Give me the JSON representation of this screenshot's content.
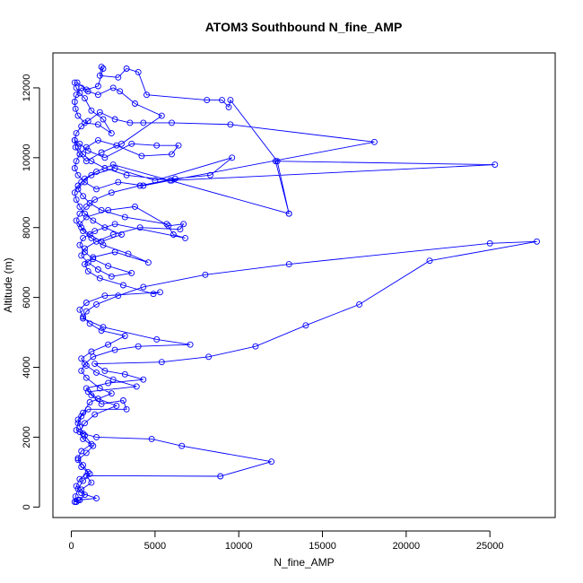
{
  "chart_data": {
    "type": "line",
    "title": "ATOM3 Southbound N_fine_AMP",
    "xlabel": "N_fine_AMP",
    "ylabel": "Altitude (m)",
    "xlim": [
      -1100,
      28900
    ],
    "ylim": [
      -300,
      13000
    ],
    "xticks": [
      0,
      5000,
      10000,
      15000,
      20000,
      25000
    ],
    "yticks": [
      0,
      2000,
      4000,
      6000,
      8000,
      10000,
      12000
    ],
    "grid": false,
    "series_color": "#0000ff",
    "series": [
      {
        "markers": "open-circle",
        "points": [
          [
            300,
            150
          ],
          [
            500,
            200
          ],
          [
            800,
            350
          ],
          [
            600,
            500
          ],
          [
            1200,
            700
          ],
          [
            900,
            900
          ],
          [
            8900,
            880
          ],
          [
            11950,
            1300
          ],
          [
            6600,
            1750
          ],
          [
            4800,
            1950
          ],
          [
            1500,
            2000
          ],
          [
            700,
            2100
          ],
          [
            300,
            2200
          ],
          [
            400,
            2400
          ],
          [
            600,
            2600
          ],
          [
            1000,
            2800
          ],
          [
            3300,
            2800
          ],
          [
            3100,
            3050
          ],
          [
            1800,
            2950
          ],
          [
            1200,
            3200
          ],
          [
            900,
            3400
          ],
          [
            2200,
            3550
          ],
          [
            4300,
            3650
          ],
          [
            3200,
            3800
          ],
          [
            2000,
            3900
          ],
          [
            1400,
            4100
          ],
          [
            5400,
            4150
          ],
          [
            8200,
            4300
          ],
          [
            11000,
            4600
          ],
          [
            14000,
            5200
          ],
          [
            17200,
            5800
          ],
          [
            21400,
            7050
          ],
          [
            27800,
            7600
          ],
          [
            25000,
            7550
          ],
          [
            13000,
            6950
          ],
          [
            8000,
            6650
          ],
          [
            4300,
            6300
          ],
          [
            2800,
            6050
          ],
          [
            1500,
            5800
          ],
          [
            900,
            5600
          ],
          [
            700,
            5400
          ],
          [
            1900,
            5150
          ],
          [
            5100,
            4800
          ],
          [
            7100,
            4650
          ],
          [
            4000,
            4600
          ],
          [
            2600,
            4500
          ],
          [
            1300,
            4300
          ],
          [
            800,
            4100
          ],
          [
            600,
            3900
          ],
          [
            900,
            3700
          ],
          [
            1700,
            3400
          ],
          [
            2400,
            3250
          ],
          [
            1100,
            3000
          ],
          [
            700,
            2700
          ],
          [
            400,
            2500
          ],
          [
            500,
            2300
          ],
          [
            800,
            2050
          ],
          [
            1200,
            1800
          ],
          [
            600,
            1600
          ],
          [
            400,
            1400
          ],
          [
            700,
            1200
          ],
          [
            1000,
            1000
          ],
          [
            500,
            800
          ],
          [
            300,
            600
          ],
          [
            600,
            400
          ],
          [
            1500,
            250
          ],
          [
            400,
            200
          ],
          [
            200,
            150
          ],
          [
            250,
            300
          ],
          [
            400,
            520
          ],
          [
            700,
            750
          ],
          [
            1100,
            950
          ],
          [
            600,
            1150
          ],
          [
            400,
            1350
          ],
          [
            900,
            1550
          ],
          [
            1300,
            1750
          ],
          [
            700,
            1950
          ],
          [
            500,
            2150
          ],
          [
            800,
            2400
          ],
          [
            1400,
            2650
          ],
          [
            2700,
            2900
          ],
          [
            1600,
            3100
          ],
          [
            1000,
            3300
          ],
          [
            3900,
            3450
          ],
          [
            2500,
            3650
          ],
          [
            1500,
            3850
          ],
          [
            900,
            4050
          ],
          [
            600,
            4250
          ],
          [
            1200,
            4450
          ],
          [
            2200,
            4650
          ],
          [
            3200,
            4900
          ],
          [
            1800,
            5050
          ],
          [
            1100,
            5250
          ],
          [
            700,
            5450
          ],
          [
            500,
            5650
          ],
          [
            900,
            5850
          ],
          [
            2000,
            6050
          ],
          [
            5300,
            6150
          ],
          [
            4900,
            6100
          ],
          [
            3100,
            6350
          ],
          [
            1700,
            6550
          ],
          [
            1000,
            6750
          ],
          [
            800,
            6950
          ],
          [
            1300,
            7150
          ],
          [
            2600,
            7300
          ],
          [
            4600,
            7000
          ],
          [
            3400,
            7250
          ],
          [
            1900,
            7500
          ],
          [
            1200,
            7700
          ],
          [
            700,
            7900
          ],
          [
            500,
            8100
          ],
          [
            900,
            8300
          ],
          [
            2200,
            8500
          ],
          [
            3800,
            8600
          ],
          [
            5800,
            8050
          ],
          [
            6700,
            8100
          ],
          [
            6500,
            7950
          ],
          [
            4100,
            8000
          ],
          [
            2500,
            7800
          ],
          [
            1500,
            7600
          ],
          [
            800,
            7400
          ],
          [
            600,
            7200
          ],
          [
            1000,
            7000
          ],
          [
            1600,
            6800
          ],
          [
            2400,
            6600
          ],
          [
            3600,
            6700
          ],
          [
            2200,
            6900
          ],
          [
            1300,
            7100
          ],
          [
            800,
            7300
          ],
          [
            500,
            7500
          ],
          [
            700,
            7700
          ],
          [
            1400,
            7900
          ],
          [
            2600,
            8100
          ],
          [
            6800,
            7700
          ],
          [
            6100,
            7800
          ],
          [
            5700,
            8100
          ],
          [
            3200,
            8300
          ],
          [
            1800,
            8500
          ],
          [
            1100,
            8700
          ],
          [
            700,
            8900
          ],
          [
            400,
            9100
          ],
          [
            600,
            9300
          ],
          [
            1200,
            9500
          ],
          [
            2600,
            9700
          ],
          [
            5000,
            9350
          ],
          [
            9600,
            10000
          ],
          [
            8300,
            9500
          ],
          [
            6200,
            9400
          ],
          [
            4100,
            9200
          ],
          [
            2400,
            9000
          ],
          [
            1400,
            8800
          ],
          [
            900,
            8600
          ],
          [
            500,
            8400
          ],
          [
            300,
            8200
          ],
          [
            600,
            8000
          ],
          [
            1100,
            7800
          ],
          [
            1800,
            7600
          ],
          [
            3000,
            7800
          ],
          [
            2000,
            8000
          ],
          [
            1300,
            8200
          ],
          [
            800,
            8400
          ],
          [
            500,
            8600
          ],
          [
            300,
            8800
          ],
          [
            200,
            9000
          ],
          [
            400,
            9200
          ],
          [
            800,
            9400
          ],
          [
            1500,
            9600
          ],
          [
            2500,
            9800
          ],
          [
            13000,
            8400
          ],
          [
            12200,
            9900
          ],
          [
            25300,
            9800
          ],
          [
            6000,
            9350
          ],
          [
            3300,
            9500
          ],
          [
            2000,
            9700
          ],
          [
            1200,
            9900
          ],
          [
            700,
            10100
          ],
          [
            400,
            10300
          ],
          [
            200,
            10500
          ],
          [
            500,
            10400
          ],
          [
            1000,
            10200
          ],
          [
            2000,
            10000
          ],
          [
            3600,
            10400
          ],
          [
            5100,
            10350
          ],
          [
            6400,
            10350
          ],
          [
            6000,
            10100
          ],
          [
            4200,
            10050
          ],
          [
            2700,
            10350
          ],
          [
            1600,
            10500
          ],
          [
            900,
            10300
          ],
          [
            500,
            10100
          ],
          [
            300,
            9900
          ],
          [
            200,
            9700
          ],
          [
            400,
            9500
          ],
          [
            800,
            9300
          ],
          [
            1500,
            9100
          ],
          [
            2800,
            9300
          ],
          [
            4300,
            9200
          ],
          [
            5900,
            9350
          ],
          [
            18100,
            10450
          ],
          [
            9500,
            10950
          ],
          [
            6000,
            11000
          ],
          [
            4300,
            11000
          ],
          [
            3500,
            11000
          ],
          [
            2600,
            11100
          ],
          [
            1700,
            11300
          ],
          [
            1000,
            11050
          ],
          [
            600,
            10900
          ],
          [
            300,
            10700
          ],
          [
            200,
            10500
          ],
          [
            250,
            10300
          ],
          [
            500,
            10100
          ],
          [
            900,
            9900
          ],
          [
            1800,
            10150
          ],
          [
            3000,
            10400
          ],
          [
            5400,
            11200
          ],
          [
            3800,
            11550
          ],
          [
            2900,
            11900
          ],
          [
            2500,
            12000
          ],
          [
            1600,
            11800
          ],
          [
            1000,
            11900
          ],
          [
            600,
            12000
          ],
          [
            300,
            11800
          ],
          [
            200,
            11600
          ],
          [
            250,
            11400
          ],
          [
            400,
            11200
          ],
          [
            800,
            11000
          ],
          [
            1600,
            10950
          ],
          [
            2400,
            10700
          ],
          [
            1900,
            11100
          ],
          [
            1200,
            11350
          ],
          [
            800,
            11700
          ],
          [
            500,
            11850
          ],
          [
            300,
            12000
          ],
          [
            200,
            12150
          ],
          [
            350,
            12150
          ],
          [
            900,
            11950
          ],
          [
            1600,
            12050
          ],
          [
            1900,
            12550
          ],
          [
            1800,
            12600
          ],
          [
            1700,
            12350
          ],
          [
            2800,
            12300
          ],
          [
            3300,
            12550
          ],
          [
            4000,
            12450
          ],
          [
            4500,
            11800
          ],
          [
            8100,
            11650
          ],
          [
            9000,
            11650
          ],
          [
            9400,
            11450
          ],
          [
            9500,
            11650
          ],
          [
            12300,
            9900
          ],
          [
            13000,
            8400
          ]
        ]
      }
    ]
  }
}
